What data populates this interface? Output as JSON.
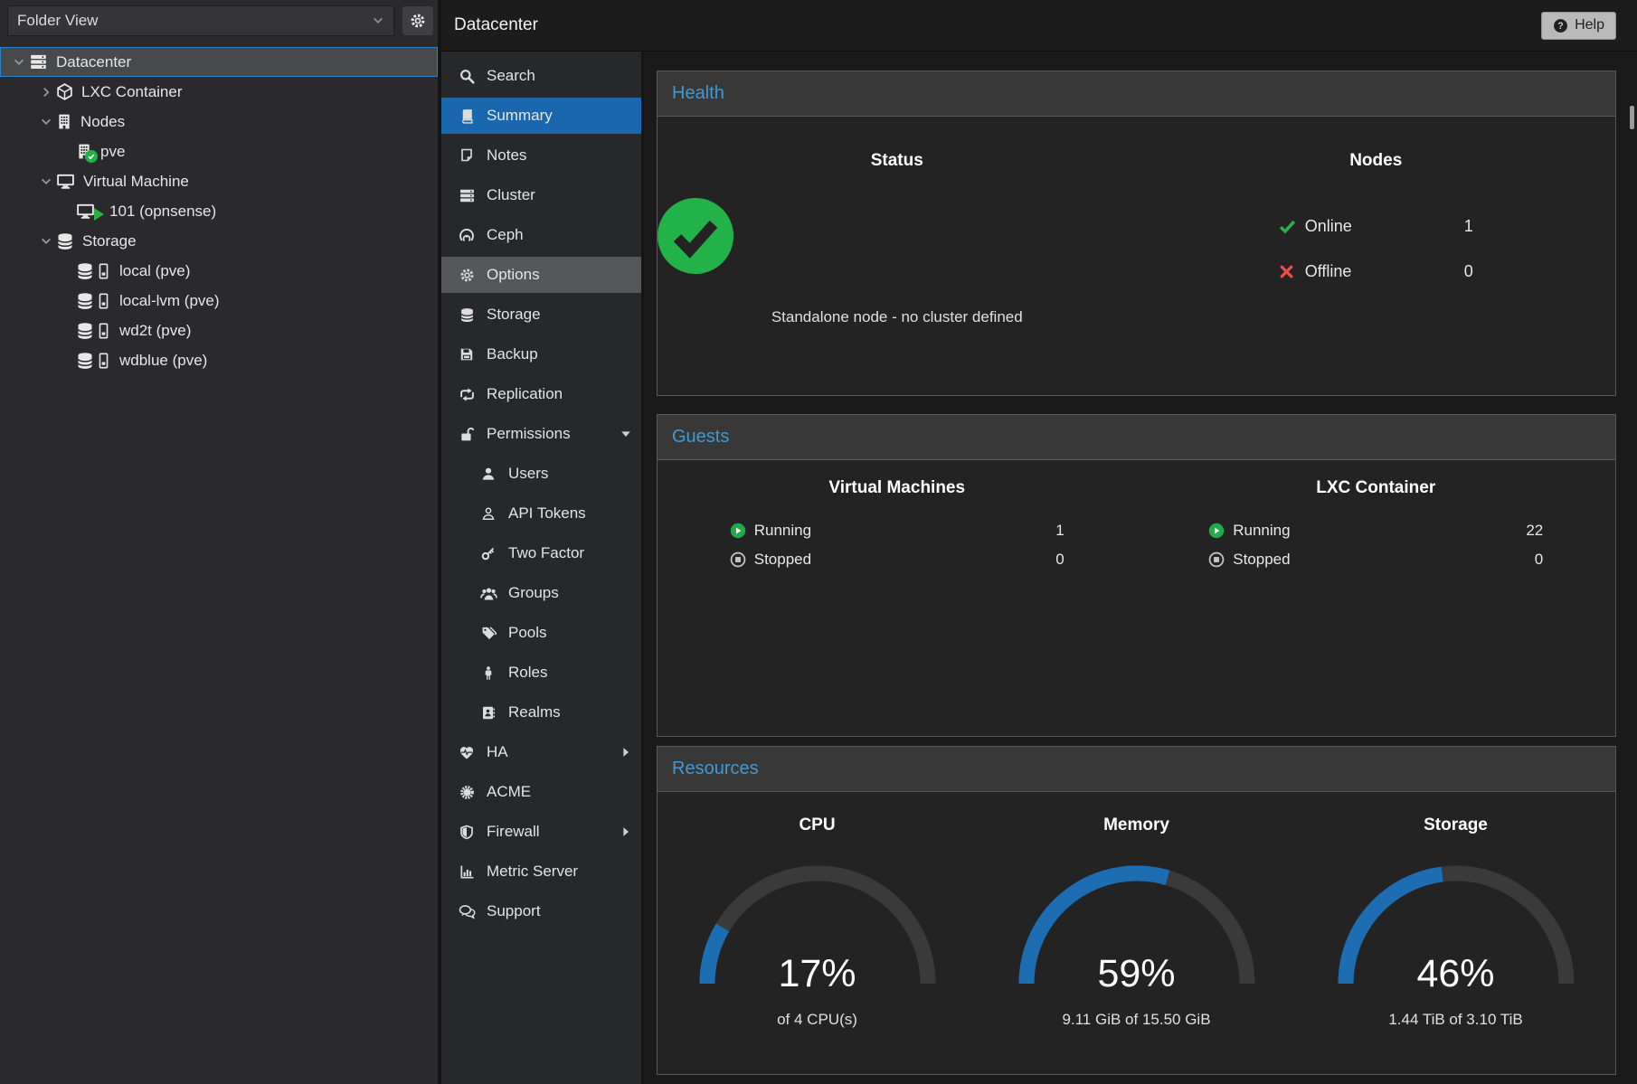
{
  "colors": {
    "accent": "#1c6db2",
    "green": "#23b14a",
    "red": "#ea4f4f",
    "header_blue": "#3e9ad6",
    "selection_blue": "#1b67ad"
  },
  "left_panel": {
    "view_selector": "Folder View",
    "tree": [
      {
        "label": "Datacenter"
      },
      {
        "label": "LXC Container"
      },
      {
        "label": "Nodes"
      },
      {
        "label": "pve"
      },
      {
        "label": "Virtual Machine"
      },
      {
        "label": "101 (opnsense)"
      },
      {
        "label": "Storage"
      },
      {
        "label": "local (pve)"
      },
      {
        "label": "local-lvm (pve)"
      },
      {
        "label": "wd2t (pve)"
      },
      {
        "label": "wdblue (pve)"
      }
    ]
  },
  "header": {
    "title": "Datacenter",
    "help": "Help"
  },
  "menu": {
    "items": [
      {
        "label": "Search"
      },
      {
        "label": "Summary"
      },
      {
        "label": "Notes"
      },
      {
        "label": "Cluster"
      },
      {
        "label": "Ceph"
      },
      {
        "label": "Options"
      },
      {
        "label": "Storage"
      },
      {
        "label": "Backup"
      },
      {
        "label": "Replication"
      },
      {
        "label": "Permissions"
      },
      {
        "label": "Users"
      },
      {
        "label": "API Tokens"
      },
      {
        "label": "Two Factor"
      },
      {
        "label": "Groups"
      },
      {
        "label": "Pools"
      },
      {
        "label": "Roles"
      },
      {
        "label": "Realms"
      },
      {
        "label": "HA"
      },
      {
        "label": "ACME"
      },
      {
        "label": "Firewall"
      },
      {
        "label": "Metric Server"
      },
      {
        "label": "Support"
      }
    ]
  },
  "content": {
    "health": {
      "title": "Health",
      "status": {
        "title": "Status",
        "message": "Standalone node - no cluster defined"
      },
      "nodes": {
        "title": "Nodes",
        "rows": [
          {
            "label": "Online",
            "value": "1"
          },
          {
            "label": "Offline",
            "value": "0"
          }
        ]
      }
    },
    "guests": {
      "title": "Guests",
      "vm": {
        "title": "Virtual Machines",
        "rows": [
          {
            "label": "Running",
            "value": "1"
          },
          {
            "label": "Stopped",
            "value": "0"
          }
        ]
      },
      "lxc": {
        "title": "LXC Container",
        "rows": [
          {
            "label": "Running",
            "value": "22"
          },
          {
            "label": "Stopped",
            "value": "0"
          }
        ]
      }
    },
    "resources": {
      "title": "Resources",
      "gauges": [
        {
          "title": "CPU",
          "pct": 17,
          "value_label": "17%",
          "caption": "of 4 CPU(s)"
        },
        {
          "title": "Memory",
          "pct": 59,
          "value_label": "59%",
          "caption": "9.11 GiB of 15.50 GiB"
        },
        {
          "title": "Storage",
          "pct": 46,
          "value_label": "46%",
          "caption": "1.44 TiB of 3.10 TiB"
        }
      ]
    }
  }
}
